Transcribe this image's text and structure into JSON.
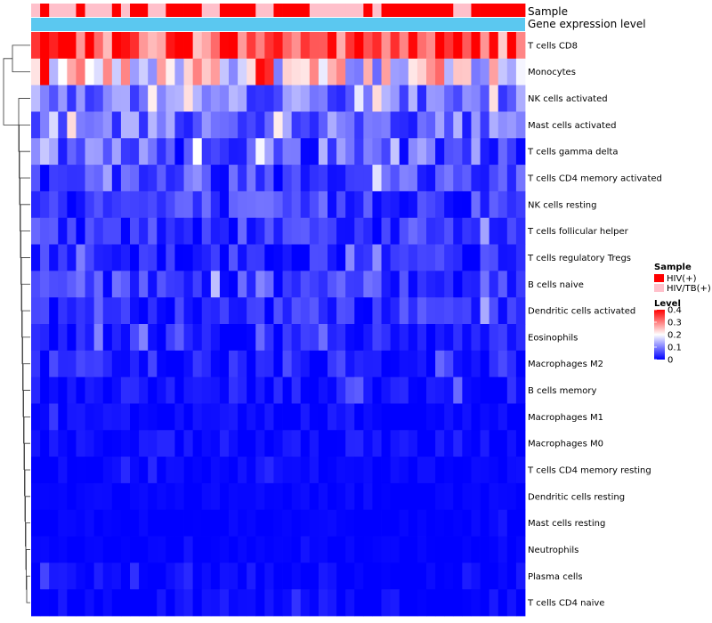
{
  "chart_data": {
    "type": "heatmap",
    "title": "",
    "annotation_rows": [
      "Sample",
      "Gene expression level"
    ],
    "rows": [
      "T cells CD8",
      "Monocytes",
      "NK cells activated",
      "Mast cells activated",
      "T cells gamma delta",
      "T cells CD4 memory activated",
      "NK cells resting",
      "T cells follicular helper",
      "T cells regulatory  Tregs",
      "B cells naive",
      "Dendritic cells activated",
      "Eosinophils",
      "Macrophages M2",
      "B cells memory",
      "Macrophages M1",
      "Macrophages M0",
      "T cells CD4 memory resting",
      "Dendritic cells resting",
      "Mast cells resting",
      "Neutrophils",
      "Plasma cells",
      "T cells CD4 naive"
    ],
    "sample_groups": "BABBBABBBABAABBAAAABBAAAABBAAAABBBBBBABAAAAAAAABBAAAAAA",
    "sample_group_legend": [
      {
        "code": "A",
        "name": "HIV(+)",
        "color": "#ff0000"
      },
      {
        "code": "B",
        "name": "HIV/TB(+)",
        "color": "#ffc0cb"
      }
    ],
    "gene_expression_color": "#5bc8f0",
    "level_legend": {
      "title": "Level",
      "min": 0,
      "max": 0.4,
      "ticks": [
        "0.4",
        "0.3",
        "0.2",
        "0.1",
        "0"
      ],
      "colors": [
        "#0000ff",
        "#ffffff",
        "#ff0000"
      ],
      "midpoint": 0.2
    },
    "row_profiles": [
      {
        "mean": 0.34,
        "spread": 0.1
      },
      {
        "mean": 0.2,
        "spread": 0.12
      },
      {
        "mean": 0.09,
        "spread": 0.06
      },
      {
        "mean": 0.08,
        "spread": 0.06
      },
      {
        "mean": 0.07,
        "spread": 0.07
      },
      {
        "mean": 0.06,
        "spread": 0.06
      },
      {
        "mean": 0.045,
        "spread": 0.05
      },
      {
        "mean": 0.04,
        "spread": 0.045
      },
      {
        "mean": 0.03,
        "spread": 0.04
      },
      {
        "mean": 0.045,
        "spread": 0.045
      },
      {
        "mean": 0.035,
        "spread": 0.04
      },
      {
        "mean": 0.02,
        "spread": 0.035
      },
      {
        "mean": 0.02,
        "spread": 0.04
      },
      {
        "mean": 0.01,
        "spread": 0.03
      },
      {
        "mean": 0.005,
        "spread": 0.02
      },
      {
        "mean": 0.005,
        "spread": 0.025
      },
      {
        "mean": 0.002,
        "spread": 0.015
      },
      {
        "mean": 0.002,
        "spread": 0.01
      },
      {
        "mean": 0.001,
        "spread": 0.008
      },
      {
        "mean": 0.001,
        "spread": 0.006
      },
      {
        "mean": 0.004,
        "spread": 0.02
      },
      {
        "mean": 0.003,
        "spread": 0.02
      }
    ],
    "legend": {
      "sample_title": "Sample",
      "level_title": "Level"
    },
    "dendrogram": "row"
  }
}
